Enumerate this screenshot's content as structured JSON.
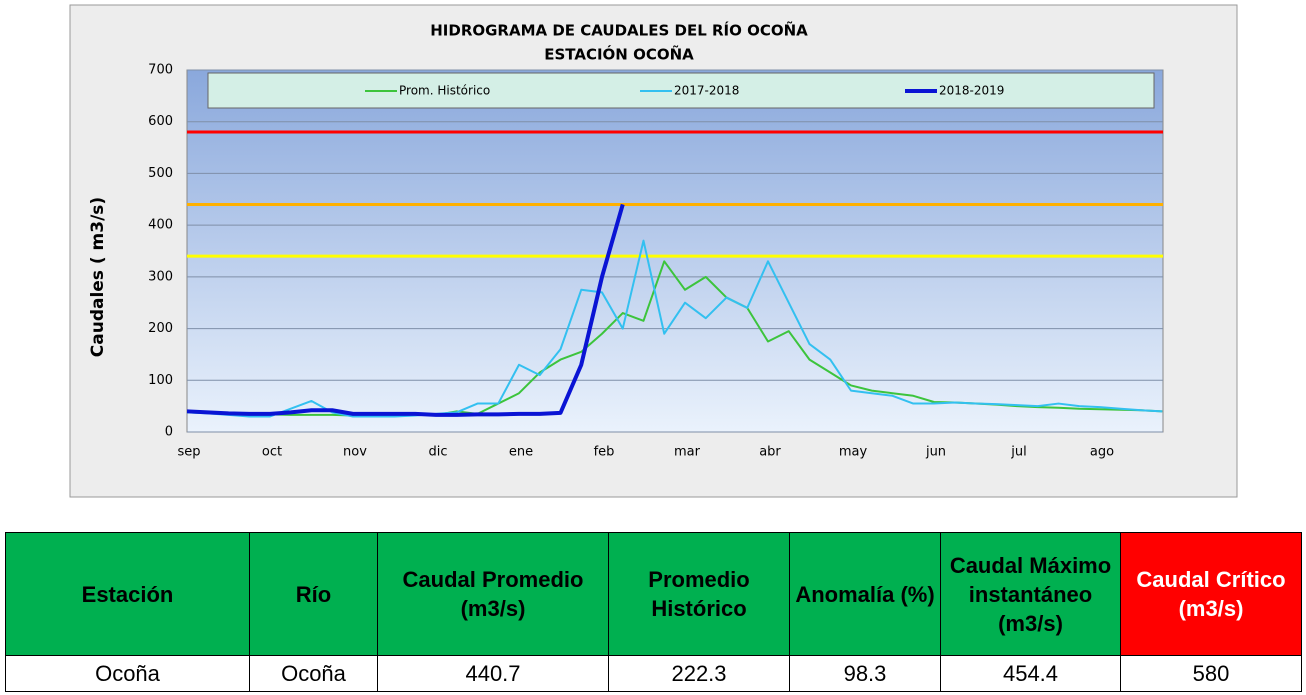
{
  "chart_data": {
    "type": "line",
    "title": "HIDROGRAMA DE CAUDALES DEL RÍO OCOÑA",
    "subtitle": "ESTACIÓN OCOÑA",
    "y_label": "Caudales ( m3/s)",
    "categories": [
      "sep",
      null,
      null,
      null,
      "oct",
      null,
      null,
      null,
      "nov",
      null,
      null,
      null,
      "dic",
      null,
      null,
      null,
      "ene",
      null,
      null,
      null,
      "feb",
      null,
      null,
      null,
      "mar",
      null,
      null,
      null,
      "abr",
      null,
      null,
      null,
      "may",
      null,
      null,
      null,
      "jun",
      null,
      null,
      null,
      "jul",
      null,
      null,
      null,
      "ago",
      null,
      null,
      null
    ],
    "series": [
      {
        "name": "Prom. Histórico",
        "color": "#3cc43c",
        "width": 2,
        "values": [
          38,
          37,
          36,
          35,
          34,
          33,
          33,
          33,
          32,
          32,
          32,
          33,
          33,
          40,
          35,
          55,
          75,
          115,
          140,
          155,
          190,
          230,
          215,
          330,
          275,
          300,
          260,
          240,
          175,
          195,
          140,
          115,
          90,
          80,
          75,
          70,
          58,
          57,
          55,
          53,
          50,
          48,
          47,
          45,
          44,
          43,
          42,
          40
        ]
      },
      {
        "name": "2017-2018",
        "color": "#33c0f0",
        "width": 2,
        "values": [
          38,
          36,
          33,
          30,
          30,
          45,
          60,
          38,
          30,
          30,
          30,
          32,
          35,
          38,
          55,
          55,
          130,
          110,
          160,
          275,
          270,
          200,
          370,
          190,
          250,
          220,
          260,
          240,
          330,
          250,
          170,
          140,
          80,
          75,
          70,
          55,
          55,
          57,
          55,
          54,
          52,
          50,
          55,
          50,
          48,
          45,
          42,
          40
        ]
      },
      {
        "name": "2018-2019",
        "color": "#0a14d4",
        "width": 4,
        "values": [
          40,
          38,
          36,
          35,
          35,
          38,
          42,
          42,
          35,
          35,
          35,
          35,
          33,
          33,
          34,
          34,
          35,
          35,
          37,
          130,
          300,
          440,
          null,
          null,
          null,
          null,
          null,
          null,
          null,
          null,
          null,
          null,
          null,
          null,
          null,
          null,
          null,
          null,
          null,
          null,
          null,
          null,
          null,
          null,
          null,
          null,
          null,
          null
        ]
      }
    ],
    "reference_lines": [
      {
        "value": 580,
        "color": "#ff0000"
      },
      {
        "value": 440,
        "color": "#ffb000"
      },
      {
        "value": 340,
        "color": "#ffff00"
      }
    ],
    "ylim": [
      0,
      700
    ],
    "yticks": [
      0,
      100,
      200,
      300,
      400,
      500,
      600,
      700
    ],
    "grid": true
  },
  "table": {
    "header": [
      "Estación",
      "Río",
      "Caudal Promedio (m3/s)",
      "Promedio Histórico",
      "Anomalía (%)",
      "Caudal Máximo instantáneo (m3/s)",
      "Caudal Crítico (m3/s)"
    ],
    "rows": [
      [
        "Ocoña",
        "Ocoña",
        "440.7",
        "222.3",
        "98.3",
        "454.4",
        "580"
      ]
    ]
  }
}
